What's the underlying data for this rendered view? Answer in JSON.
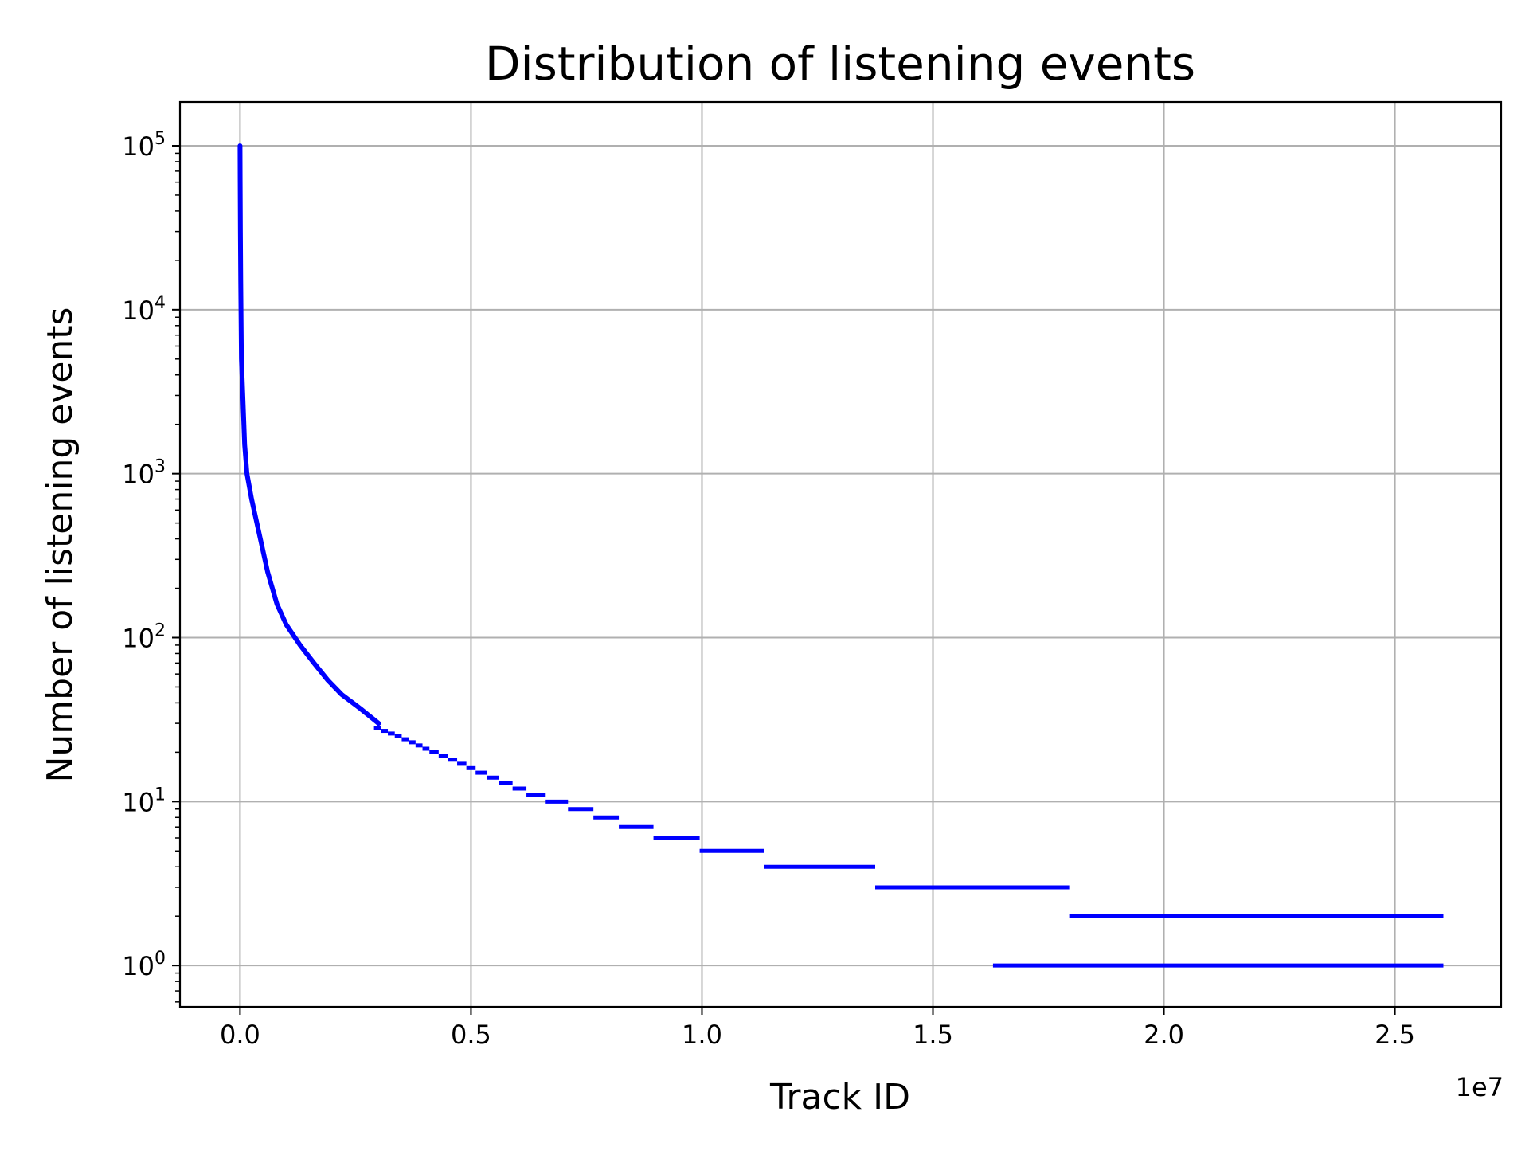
{
  "chart_data": {
    "type": "scatter",
    "title": "Distribution of listening events",
    "xlabel": "Track ID",
    "ylabel": "Number of listening events",
    "x_offset_label": "1e7",
    "x_scale": "linear",
    "y_scale": "log",
    "xlim": [
      -1300000,
      27300000
    ],
    "ylim": [
      0.56,
      185000
    ],
    "grid": true,
    "x_ticks": [
      {
        "value": 0,
        "label": "0.0"
      },
      {
        "value": 5000000,
        "label": "0.5"
      },
      {
        "value": 10000000,
        "label": "1.0"
      },
      {
        "value": 15000000,
        "label": "1.5"
      },
      {
        "value": 20000000,
        "label": "2.0"
      },
      {
        "value": 25000000,
        "label": "2.5"
      }
    ],
    "y_ticks": [
      {
        "value": 1,
        "base": "10",
        "exp": "0"
      },
      {
        "value": 10,
        "base": "10",
        "exp": "1"
      },
      {
        "value": 100,
        "base": "10",
        "exp": "2"
      },
      {
        "value": 1000,
        "base": "10",
        "exp": "3"
      },
      {
        "value": 10000,
        "base": "10",
        "exp": "4"
      },
      {
        "value": 100000,
        "base": "10",
        "exp": "5"
      }
    ],
    "series": [
      {
        "color": "#0000ff",
        "curve_points": [
          [
            0,
            100000
          ],
          [
            3000,
            60000
          ],
          [
            8000,
            30000
          ],
          [
            15000,
            15000
          ],
          [
            30000,
            5000
          ],
          [
            60000,
            3000
          ],
          [
            100000,
            1500
          ],
          [
            150000,
            1000
          ],
          [
            250000,
            700
          ],
          [
            400000,
            450
          ],
          [
            600000,
            250
          ],
          [
            800000,
            160
          ],
          [
            1000000,
            120
          ],
          [
            1300000,
            90
          ],
          [
            1600000,
            70
          ],
          [
            1900000,
            55
          ],
          [
            2200000,
            45
          ],
          [
            2600000,
            37
          ],
          [
            3000000,
            30
          ]
        ],
        "steps": [
          {
            "y": 28,
            "x_start": 2900000,
            "x_end": 3050000
          },
          {
            "y": 27,
            "x_start": 3050000,
            "x_end": 3200000
          },
          {
            "y": 26,
            "x_start": 3200000,
            "x_end": 3350000
          },
          {
            "y": 25,
            "x_start": 3350000,
            "x_end": 3500000
          },
          {
            "y": 24,
            "x_start": 3500000,
            "x_end": 3650000
          },
          {
            "y": 23,
            "x_start": 3650000,
            "x_end": 3800000
          },
          {
            "y": 22,
            "x_start": 3800000,
            "x_end": 3950000
          },
          {
            "y": 21,
            "x_start": 3950000,
            "x_end": 4100000
          },
          {
            "y": 20,
            "x_start": 4100000,
            "x_end": 4300000
          },
          {
            "y": 19,
            "x_start": 4300000,
            "x_end": 4500000
          },
          {
            "y": 18,
            "x_start": 4500000,
            "x_end": 4700000
          },
          {
            "y": 17,
            "x_start": 4700000,
            "x_end": 4900000
          },
          {
            "y": 16,
            "x_start": 4900000,
            "x_end": 5100000
          },
          {
            "y": 15,
            "x_start": 5100000,
            "x_end": 5350000
          },
          {
            "y": 14,
            "x_start": 5350000,
            "x_end": 5600000
          },
          {
            "y": 13,
            "x_start": 5600000,
            "x_end": 5900000
          },
          {
            "y": 12,
            "x_start": 5900000,
            "x_end": 6200000
          },
          {
            "y": 11,
            "x_start": 6200000,
            "x_end": 6600000
          },
          {
            "y": 10,
            "x_start": 6600000,
            "x_end": 7100000
          },
          {
            "y": 9,
            "x_start": 7100000,
            "x_end": 7650000
          },
          {
            "y": 8,
            "x_start": 7650000,
            "x_end": 8200000
          },
          {
            "y": 7,
            "x_start": 8200000,
            "x_end": 8950000
          },
          {
            "y": 6,
            "x_start": 8950000,
            "x_end": 9950000
          },
          {
            "y": 5,
            "x_start": 9950000,
            "x_end": 11350000
          },
          {
            "y": 4,
            "x_start": 11350000,
            "x_end": 13750000
          },
          {
            "y": 3,
            "x_start": 13750000,
            "x_end": 17950000
          },
          {
            "y": 2,
            "x_start": 17950000,
            "x_end": 26050000
          },
          {
            "y": 1,
            "x_start": 16300000,
            "x_end": 26050000
          }
        ]
      }
    ]
  }
}
